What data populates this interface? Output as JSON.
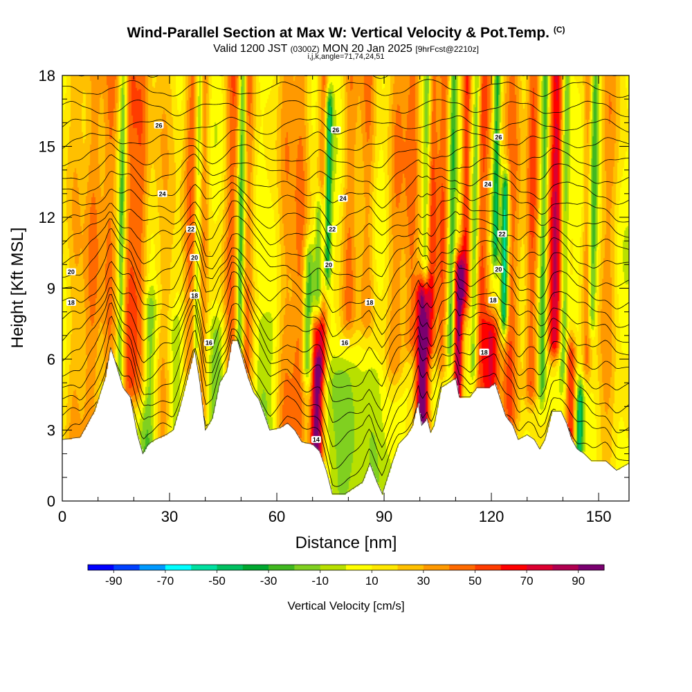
{
  "chart_data": {
    "type": "heatmap",
    "title": "Wind-Parallel Section at Max W: Vertical Velocity & Pot.Temp.",
    "title_mark": "(C)",
    "subtitle_pre": "Valid 1200 JST",
    "subtitle_utc": "(0300Z)",
    "subtitle_date": "MON 20 Jan 2025",
    "subtitle_fcst": "[9hrFcst@2210z]",
    "subtitle2": "i,j,k,angle=71,74,24,51",
    "xlabel": "Distance [nm]",
    "ylabel": "Height [Kft MSL]",
    "xlim": [
      0,
      158.5
    ],
    "ylim": [
      0,
      18
    ],
    "xticks": [
      0,
      30,
      60,
      90,
      120,
      150
    ],
    "yticks": [
      0,
      3,
      6,
      9,
      12,
      15,
      18
    ],
    "colorbar": {
      "label": "Vertical Velocity [cm/s]",
      "min": -100,
      "max": 100,
      "step": 10,
      "tick_labels": [
        "-90",
        "-70",
        "-50",
        "-30",
        "-10",
        "10",
        "30",
        "50",
        "70",
        "90"
      ],
      "colors": [
        "#0000ff",
        "#0040ff",
        "#0099ff",
        "#00ffff",
        "#00e0a0",
        "#00c060",
        "#00a830",
        "#40b820",
        "#80d020",
        "#b8e000",
        "#ffff00",
        "#ffe800",
        "#ffc000",
        "#ff9900",
        "#ff6a00",
        "#ff3c00",
        "#ff0000",
        "#dd0030",
        "#b00050",
        "#7a0070"
      ]
    },
    "terrain_kft": [
      [
        0,
        2.6
      ],
      [
        5,
        2.7
      ],
      [
        9,
        3.8
      ],
      [
        12,
        5.2
      ],
      [
        13.5,
        6.5
      ],
      [
        15,
        5.8
      ],
      [
        17,
        4.8
      ],
      [
        19,
        4.4
      ],
      [
        21,
        2.8
      ],
      [
        22.5,
        2.0
      ],
      [
        24,
        2.4
      ],
      [
        26,
        2.6
      ],
      [
        29,
        2.8
      ],
      [
        31,
        3.0
      ],
      [
        33,
        4.0
      ],
      [
        35,
        5.2
      ],
      [
        37,
        6.4
      ],
      [
        38.5,
        5.0
      ],
      [
        40,
        3.0
      ],
      [
        42,
        3.5
      ],
      [
        44,
        5.0
      ],
      [
        46,
        5.5
      ],
      [
        47.5,
        6.8
      ],
      [
        49,
        6.8
      ],
      [
        50.5,
        6.0
      ],
      [
        52,
        5.2
      ],
      [
        53.5,
        4.6
      ],
      [
        55,
        4.3
      ],
      [
        58,
        3.0
      ],
      [
        61,
        3.1
      ],
      [
        63,
        3.3
      ],
      [
        65,
        3.0
      ],
      [
        67,
        2.5
      ],
      [
        70,
        2.4
      ],
      [
        72,
        2.1
      ],
      [
        74,
        1.2
      ],
      [
        75.5,
        0.3
      ],
      [
        79,
        0.3
      ],
      [
        82,
        0.6
      ],
      [
        84,
        0.8
      ],
      [
        86,
        1.6
      ],
      [
        88,
        0.8
      ],
      [
        89.5,
        0.3
      ],
      [
        92,
        1.5
      ],
      [
        94,
        2.4
      ],
      [
        96.5,
        2.8
      ],
      [
        98,
        3.2
      ],
      [
        99.5,
        4.2
      ],
      [
        100.5,
        3.2
      ],
      [
        102,
        3.5
      ],
      [
        103,
        2.9
      ],
      [
        104,
        3.2
      ],
      [
        106,
        4.8
      ],
      [
        108,
        5.0
      ],
      [
        110,
        5.2
      ],
      [
        111,
        4.4
      ],
      [
        114,
        4.4
      ],
      [
        116,
        4.8
      ],
      [
        119.5,
        4.8
      ],
      [
        121,
        5.0
      ],
      [
        122.5,
        4.3
      ],
      [
        124,
        3.6
      ],
      [
        126,
        3.2
      ],
      [
        127.5,
        2.6
      ],
      [
        130,
        2.8
      ],
      [
        132,
        2.6
      ],
      [
        133.5,
        2.2
      ],
      [
        135,
        2.6
      ],
      [
        137,
        3.8
      ],
      [
        139.5,
        3.8
      ],
      [
        141,
        3.3
      ],
      [
        142.5,
        2.6
      ],
      [
        144,
        2.2
      ],
      [
        146,
        2.0
      ],
      [
        148,
        1.7
      ],
      [
        152,
        1.7
      ],
      [
        155,
        1.3
      ],
      [
        158.5,
        1.6
      ]
    ],
    "updraft_columns": [
      {
        "x": 3,
        "w": 2.5,
        "peak": 24,
        "z": [
          0,
          18
        ]
      },
      {
        "x": 8,
        "w": 2.5,
        "peak": 32,
        "z": [
          0,
          18
        ]
      },
      {
        "x": 13,
        "w": 2.2,
        "peak": 35,
        "z": [
          2,
          18
        ]
      },
      {
        "x": 18.5,
        "w": 2.0,
        "peak": 38,
        "z": [
          5,
          18
        ]
      },
      {
        "x": 21.5,
        "w": 2.0,
        "peak": 34,
        "z": [
          5,
          18
        ]
      },
      {
        "x": 28,
        "w": 3.0,
        "peak": 24,
        "z": [
          3,
          18
        ]
      },
      {
        "x": 35.5,
        "w": 2.0,
        "peak": 38,
        "z": [
          6,
          18
        ]
      },
      {
        "x": 39,
        "w": 1.6,
        "peak": 32,
        "z": [
          4,
          18
        ]
      },
      {
        "x": 47,
        "w": 2.2,
        "peak": 40,
        "z": [
          6,
          18
        ]
      },
      {
        "x": 51.5,
        "w": 1.8,
        "peak": 34,
        "z": [
          5,
          18
        ]
      },
      {
        "x": 62,
        "w": 2.4,
        "peak": 30,
        "z": [
          3,
          18
        ]
      },
      {
        "x": 66,
        "w": 2.2,
        "peak": 34,
        "z": [
          3,
          18
        ]
      },
      {
        "x": 71,
        "w": 1.8,
        "peak": 95,
        "z": [
          2.2,
          7
        ]
      },
      {
        "x": 72.5,
        "w": 1.6,
        "peak": 38,
        "z": [
          6,
          18
        ]
      },
      {
        "x": 80,
        "w": 2.2,
        "peak": 32,
        "z": [
          8,
          18
        ]
      },
      {
        "x": 85,
        "w": 2.2,
        "peak": 32,
        "z": [
          8,
          18
        ]
      },
      {
        "x": 93,
        "w": 2.5,
        "peak": 30,
        "z": [
          6,
          18
        ]
      },
      {
        "x": 97.5,
        "w": 2.2,
        "peak": 38,
        "z": [
          7,
          18
        ]
      },
      {
        "x": 100.5,
        "w": 1.8,
        "peak": 95,
        "z": [
          3.2,
          8.5
        ]
      },
      {
        "x": 103,
        "w": 1.6,
        "peak": 45,
        "z": [
          7,
          18
        ]
      },
      {
        "x": 106,
        "w": 1.6,
        "peak": 40,
        "z": [
          6,
          18
        ]
      },
      {
        "x": 110.5,
        "w": 1.3,
        "peak": 85,
        "z": [
          4.5,
          9.5
        ]
      },
      {
        "x": 112.5,
        "w": 1.3,
        "peak": 55,
        "z": [
          9,
          18
        ]
      },
      {
        "x": 117,
        "w": 2.2,
        "peak": 45,
        "z": [
          4.5,
          18
        ]
      },
      {
        "x": 120,
        "w": 2.0,
        "peak": 55,
        "z": [
          4.5,
          7
        ]
      },
      {
        "x": 125,
        "w": 2.5,
        "peak": 40,
        "z": [
          3.5,
          18
        ]
      },
      {
        "x": 131,
        "w": 1.8,
        "peak": 45,
        "z": [
          5,
          18
        ]
      },
      {
        "x": 137.5,
        "w": 2.0,
        "peak": 72,
        "z": [
          7,
          18
        ]
      },
      {
        "x": 142,
        "w": 1.5,
        "peak": 60,
        "z": [
          3,
          6
        ]
      },
      {
        "x": 146.5,
        "w": 1.4,
        "peak": 35,
        "z": [
          6,
          18
        ]
      },
      {
        "x": 152,
        "w": 2.5,
        "peak": 28,
        "z": [
          0,
          18
        ]
      }
    ],
    "downdraft_columns": [
      {
        "x": 16,
        "w": 1.0,
        "peak": -35,
        "z": [
          5,
          18
        ]
      },
      {
        "x": 24,
        "w": 2.2,
        "peak": -28,
        "z": [
          2,
          8
        ]
      },
      {
        "x": 31,
        "w": 2.0,
        "peak": -22,
        "z": [
          3,
          7
        ]
      },
      {
        "x": 37.5,
        "w": 0.9,
        "peak": -32,
        "z": [
          7,
          18
        ]
      },
      {
        "x": 43,
        "w": 2.5,
        "peak": -22,
        "z": [
          3,
          7
        ]
      },
      {
        "x": 49.5,
        "w": 1.0,
        "peak": -48,
        "z": [
          7,
          18
        ]
      },
      {
        "x": 56,
        "w": 3.0,
        "peak": -20,
        "z": [
          3,
          7
        ]
      },
      {
        "x": 68.5,
        "w": 1.4,
        "peak": -40,
        "z": [
          6,
          10
        ]
      },
      {
        "x": 71.5,
        "w": 1.2,
        "peak": -50,
        "z": [
          7,
          12
        ]
      },
      {
        "x": 74,
        "w": 1.0,
        "peak": -62,
        "z": [
          10,
          16.5
        ]
      },
      {
        "x": 77.5,
        "w": 4.0,
        "peak": -20,
        "z": [
          0.5,
          5
        ]
      },
      {
        "x": 87,
        "w": 3.0,
        "peak": -16,
        "z": [
          1,
          5
        ]
      },
      {
        "x": 101.5,
        "w": 1.0,
        "peak": -32,
        "z": [
          9,
          18
        ]
      },
      {
        "x": 108.5,
        "w": 1.0,
        "peak": -35,
        "z": [
          7,
          18
        ]
      },
      {
        "x": 115,
        "w": 1.0,
        "peak": -40,
        "z": [
          6,
          18
        ]
      },
      {
        "x": 121,
        "w": 1.0,
        "peak": -48,
        "z": [
          11,
          18
        ]
      },
      {
        "x": 123.5,
        "w": 1.0,
        "peak": -78,
        "z": [
          8,
          13
        ]
      },
      {
        "x": 134,
        "w": 1.0,
        "peak": -35,
        "z": [
          5,
          18
        ]
      },
      {
        "x": 140,
        "w": 1.0,
        "peak": -32,
        "z": [
          6,
          18
        ]
      },
      {
        "x": 144.5,
        "w": 1.0,
        "peak": -55,
        "z": [
          2,
          4
        ]
      },
      {
        "x": 148,
        "w": 1.2,
        "peak": -40,
        "z": [
          8,
          18
        ]
      }
    ],
    "theta_contours": {
      "count": 24,
      "base_kft": 0.5,
      "spacing_kft": 0.8,
      "labels": [
        {
          "text": "26",
          "x": 27,
          "z": 15.9
        },
        {
          "text": "24",
          "x": 28,
          "z": 13.0
        },
        {
          "text": "22",
          "x": 36,
          "z": 11.5
        },
        {
          "text": "20",
          "x": 37,
          "z": 10.3
        },
        {
          "text": "20",
          "x": 2.5,
          "z": 9.7
        },
        {
          "text": "18",
          "x": 2.5,
          "z": 8.4
        },
        {
          "text": "18",
          "x": 37,
          "z": 8.7
        },
        {
          "text": "16",
          "x": 41,
          "z": 6.7
        },
        {
          "text": "26",
          "x": 76.5,
          "z": 15.7
        },
        {
          "text": "24",
          "x": 78.5,
          "z": 12.8
        },
        {
          "text": "22",
          "x": 75.5,
          "z": 11.5
        },
        {
          "text": "20",
          "x": 74.5,
          "z": 10.0
        },
        {
          "text": "18",
          "x": 86,
          "z": 8.4
        },
        {
          "text": "16",
          "x": 79,
          "z": 6.7
        },
        {
          "text": "14",
          "x": 71,
          "z": 2.6
        },
        {
          "text": "26",
          "x": 122,
          "z": 15.4
        },
        {
          "text": "24",
          "x": 119,
          "z": 13.4
        },
        {
          "text": "22",
          "x": 123,
          "z": 11.3
        },
        {
          "text": "20",
          "x": 122,
          "z": 9.8
        },
        {
          "text": "18",
          "x": 120.5,
          "z": 8.5
        },
        {
          "text": "18",
          "x": 118,
          "z": 6.3
        }
      ]
    }
  }
}
